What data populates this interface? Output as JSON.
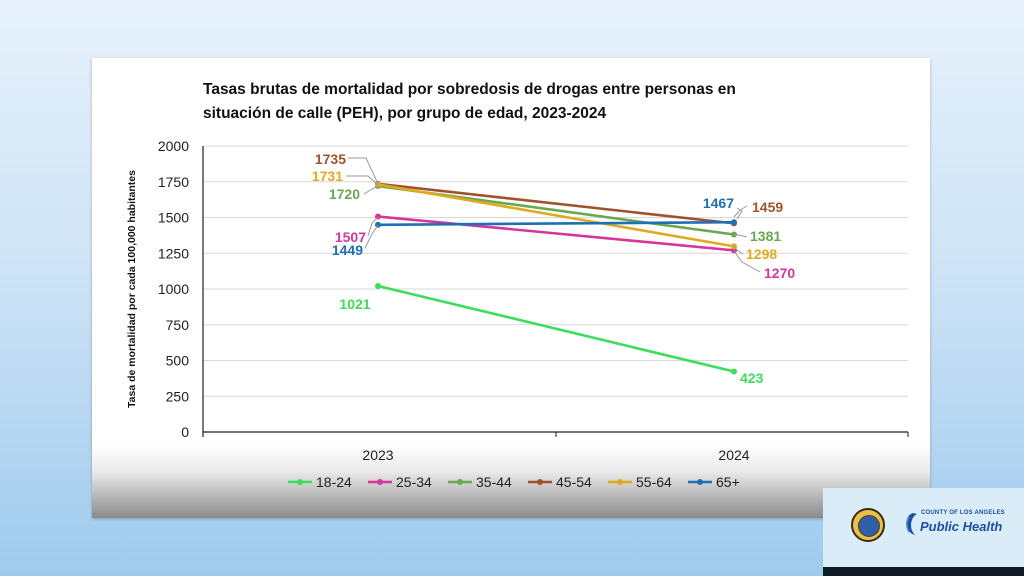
{
  "chart_data": {
    "type": "line",
    "title_lines": [
      "Tasas brutas de mortalidad por sobredosis de drogas entre personas en",
      "situación de calle (PEH), por grupo de edad, 2023-2024"
    ],
    "xlabel": "",
    "ylabel": "Tasa de mortalidad por cada 100,000 habitantes",
    "categories": [
      "2023",
      "2024"
    ],
    "ylim": [
      0,
      2000
    ],
    "yticks": [
      0,
      250,
      500,
      750,
      1000,
      1250,
      1500,
      1750,
      2000
    ],
    "grid": true,
    "legend_position": "bottom",
    "series": [
      {
        "name": "18-24",
        "color": "#3ddc5a",
        "values": [
          1021,
          423
        ]
      },
      {
        "name": "25-34",
        "color": "#d6359b",
        "values": [
          1507,
          1270
        ]
      },
      {
        "name": "35-44",
        "color": "#6aa84f",
        "values": [
          1720,
          1381
        ]
      },
      {
        "name": "45-54",
        "color": "#a0522d",
        "values": [
          1735,
          1459
        ]
      },
      {
        "name": "55-64",
        "color": "#e0aa20",
        "values": [
          1731,
          1298
        ]
      },
      {
        "name": "65+",
        "color": "#1f6fb5",
        "values": [
          1449,
          1467
        ]
      }
    ]
  },
  "logo": {
    "county_text": "COUNTY OF LOS ANGELES",
    "name": "Public Health"
  }
}
